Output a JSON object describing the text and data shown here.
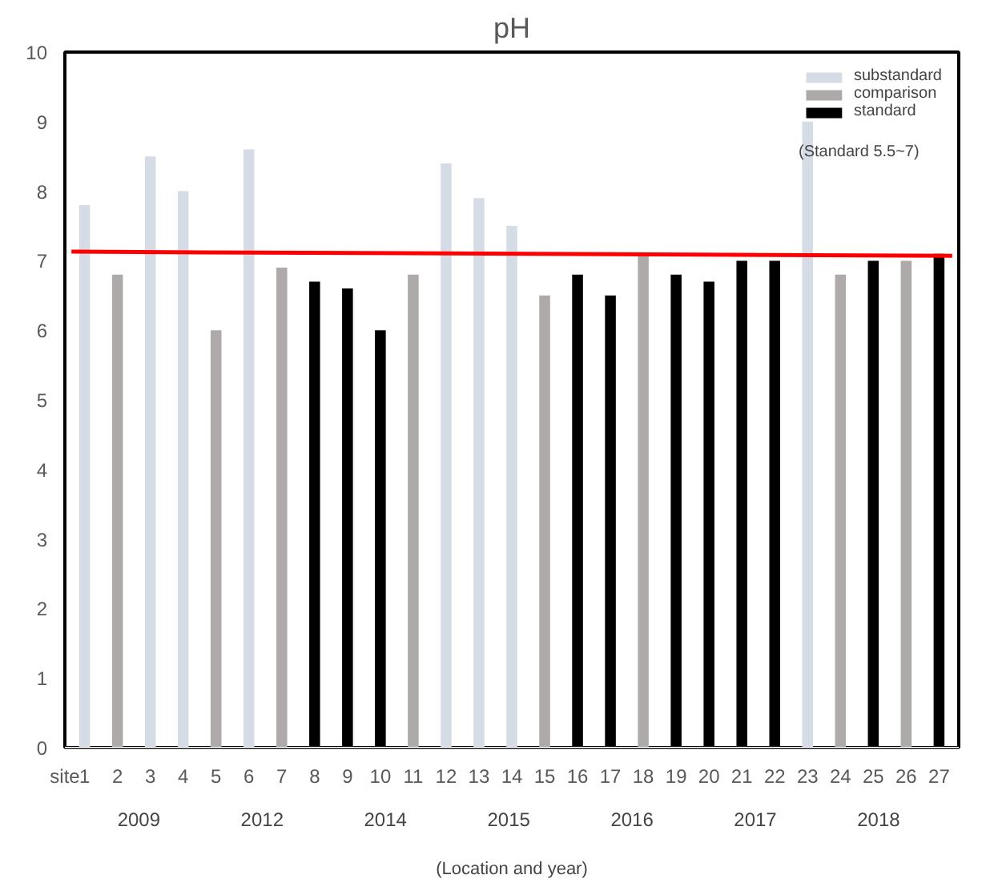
{
  "chart_data": {
    "type": "bar",
    "title": "pH",
    "xlabel": "(Location and year)",
    "x": [
      1,
      2,
      3,
      4,
      5,
      6,
      7,
      8,
      9,
      10,
      11,
      12,
      13,
      14,
      15,
      16,
      17,
      18,
      19,
      20,
      21,
      22,
      23,
      24,
      25,
      26,
      27
    ],
    "xlim": [
      0.4,
      27.6
    ],
    "xticks": [
      1,
      2,
      3,
      4,
      5,
      6,
      7,
      8,
      9,
      10,
      11,
      12,
      13,
      14,
      15,
      16,
      17,
      18,
      19,
      20,
      21,
      22,
      23,
      24,
      25,
      26,
      27
    ],
    "ylim": [
      0,
      10
    ],
    "yticks": [
      0,
      1,
      2,
      3,
      4,
      5,
      6,
      7,
      8,
      9,
      10
    ],
    "series": [
      {
        "name": "substandard",
        "color": "#d6dce5",
        "values": [
          7.8,
          null,
          8.5,
          8.0,
          null,
          8.6,
          null,
          null,
          null,
          null,
          null,
          8.4,
          7.9,
          7.5,
          null,
          null,
          null,
          null,
          null,
          null,
          null,
          null,
          9.0,
          null,
          null,
          null,
          null
        ]
      },
      {
        "name": "comparison",
        "color": "#aeaaaa",
        "values": [
          null,
          6.8,
          null,
          null,
          6.0,
          null,
          6.9,
          null,
          null,
          null,
          6.8,
          null,
          null,
          null,
          6.5,
          null,
          null,
          7.1,
          null,
          null,
          null,
          null,
          null,
          6.8,
          null,
          7.0,
          null
        ]
      },
      {
        "name": "standard",
        "color": "#000000",
        "values": [
          null,
          null,
          null,
          null,
          null,
          null,
          null,
          6.7,
          6.6,
          6.0,
          null,
          null,
          null,
          null,
          null,
          6.8,
          6.5,
          null,
          6.8,
          6.7,
          7.0,
          7.0,
          null,
          null,
          7.0,
          null,
          7.1
        ]
      },
      {
        "type": "line",
        "color": "#ff0000",
        "x": [
          0.6,
          27.4
        ],
        "values": [
          7.13,
          7.07
        ]
      }
    ],
    "annotations": [
      "(Standard 5.5~7)",
      "site",
      "2009",
      "2012",
      "2014",
      "2015",
      "2016",
      "2017",
      "2018"
    ],
    "legend": "top right",
    "grid": false
  }
}
